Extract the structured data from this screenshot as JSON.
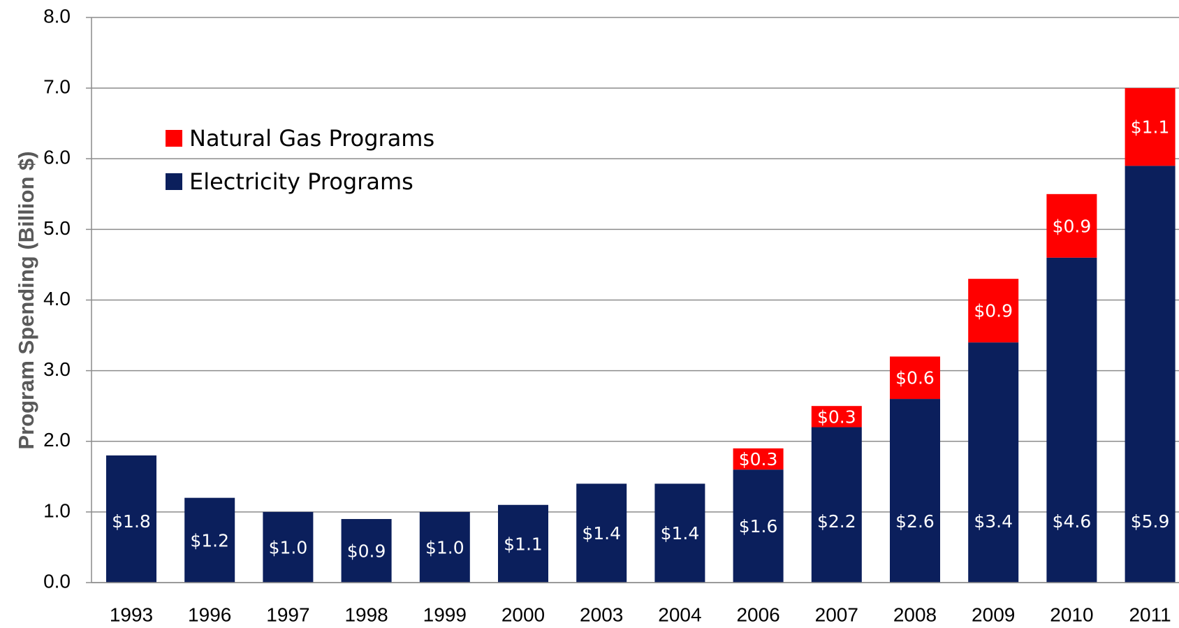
{
  "chart_data": {
    "type": "stacked_bar",
    "y_axis_label": "Program Spending (Billion $)",
    "categories": [
      "1993",
      "1996",
      "1997",
      "1998",
      "1999",
      "2000",
      "2003",
      "2004",
      "2006",
      "2007",
      "2008",
      "2009",
      "2010",
      "2011"
    ],
    "series": [
      {
        "name": "Electricity Programs",
        "color": "#0b1f5c",
        "values": [
          1.8,
          1.2,
          1.0,
          0.9,
          1.0,
          1.1,
          1.4,
          1.4,
          1.6,
          2.2,
          2.6,
          3.4,
          4.6,
          5.9
        ],
        "value_labels": [
          "$1.8",
          "$1.2",
          "$1.0",
          "$0.9",
          "$1.0",
          "$1.1",
          "$1.4",
          "$1.4",
          "$1.6",
          "$2.2",
          "$2.6",
          "$3.4",
          "$4.6",
          "$5.9"
        ]
      },
      {
        "name": "Natural Gas Programs",
        "color": "#ff0000",
        "values": [
          null,
          null,
          null,
          null,
          null,
          null,
          null,
          null,
          0.3,
          0.3,
          0.6,
          0.9,
          0.9,
          1.1
        ],
        "value_labels": [
          null,
          null,
          null,
          null,
          null,
          null,
          null,
          null,
          "$0.3",
          "$0.3",
          "$0.6",
          "$0.9",
          "$0.9",
          "$1.1"
        ]
      }
    ],
    "ylim": [
      0,
      8
    ],
    "yticks": [
      {
        "value": 0,
        "label": "0.0"
      },
      {
        "value": 1,
        "label": "1.0"
      },
      {
        "value": 2,
        "label": "2.0"
      },
      {
        "value": 3,
        "label": "3.0"
      },
      {
        "value": 4,
        "label": "4.0"
      },
      {
        "value": 5,
        "label": "5.0"
      },
      {
        "value": 6,
        "label": "6.0"
      },
      {
        "value": 7,
        "label": "7.0"
      },
      {
        "value": 8,
        "label": "8.0"
      }
    ],
    "grid": true
  }
}
